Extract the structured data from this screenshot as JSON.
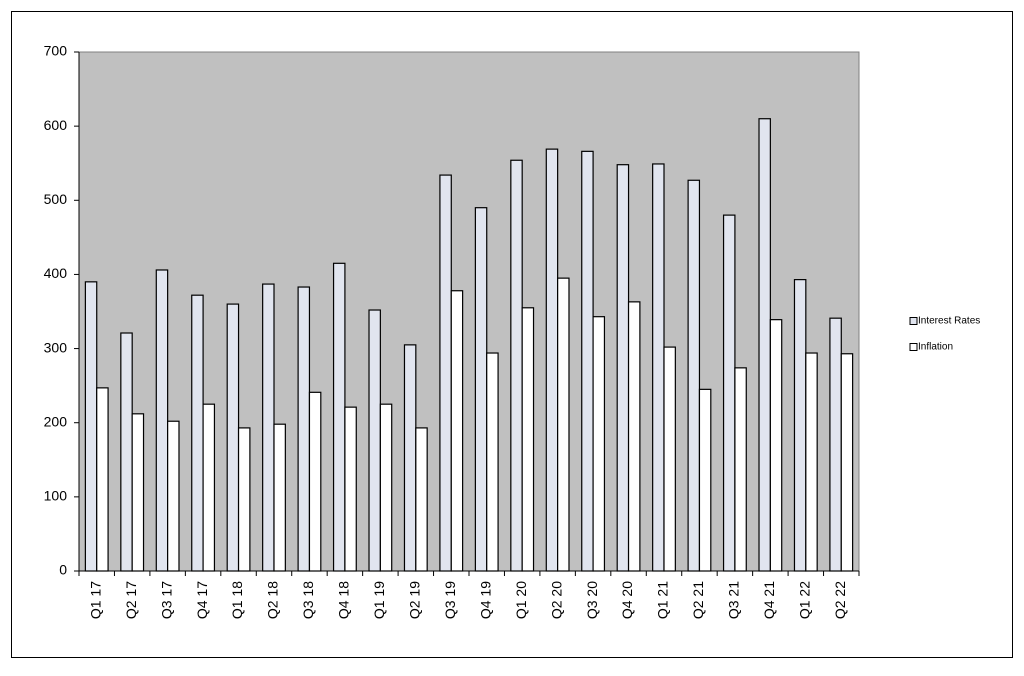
{
  "chart_data": {
    "type": "bar",
    "categories": [
      "Q1 17",
      "Q2 17",
      "Q3 17",
      "Q4 17",
      "Q1 18",
      "Q2 18",
      "Q3 18",
      "Q4 18",
      "Q1 19",
      "Q2 19",
      "Q3 19",
      "Q4 19",
      "Q1 20",
      "Q2 20",
      "Q3 20",
      "Q4 20",
      "Q1 21",
      "Q2 21",
      "Q3 21",
      "Q4 21",
      "Q1 22",
      "Q2 22"
    ],
    "series": [
      {
        "name": "Interest Rates",
        "color": "#e1e5ef",
        "values": [
          390,
          321,
          406,
          372,
          360,
          387,
          383,
          415,
          352,
          305,
          534,
          490,
          554,
          569,
          566,
          548,
          549,
          527,
          480,
          610,
          393,
          341
        ]
      },
      {
        "name": "Inflation",
        "color": "#ffffff",
        "values": [
          247,
          212,
          202,
          225,
          193,
          198,
          241,
          221,
          225,
          193,
          378,
          294,
          355,
          395,
          343,
          363,
          302,
          245,
          274,
          339,
          294,
          293
        ]
      }
    ],
    "ylim": [
      0,
      700
    ],
    "yticks": [
      0,
      100,
      200,
      300,
      400,
      500,
      600,
      700
    ],
    "plot_background": "#c0c0c0",
    "legend": "right"
  }
}
